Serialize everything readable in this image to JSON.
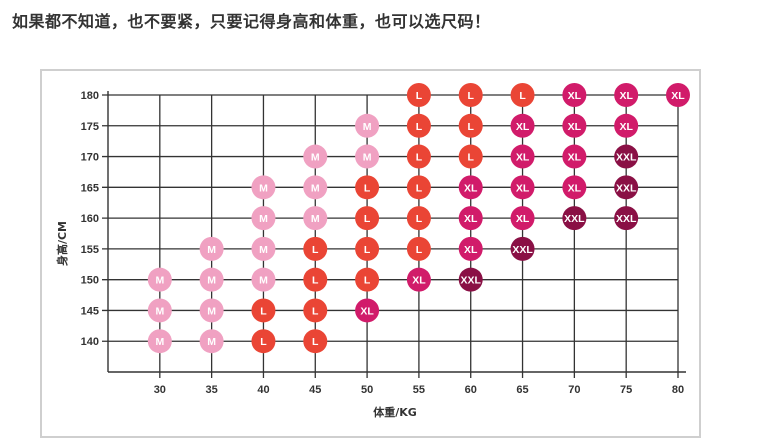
{
  "header": {
    "headline": "如果都不知道，也不要紧，只要记得身高和体重，也可以选尺码！"
  },
  "colors": {
    "M": "#f0a1c2",
    "L": "#ea4535",
    "XL": "#d11b6a",
    "XXL": "#8a1045",
    "grid": "#333333",
    "frame": "#cfcfcf"
  },
  "chart_data": {
    "type": "scatter",
    "xlabel": "体重/KG",
    "ylabel": "身高/CM",
    "x_ticks": [
      30,
      35,
      40,
      45,
      50,
      55,
      60,
      65,
      70,
      75,
      80
    ],
    "y_ticks": [
      140,
      145,
      150,
      155,
      160,
      165,
      170,
      175,
      180
    ],
    "xlim": [
      25,
      80
    ],
    "ylim": [
      135,
      180
    ],
    "points": [
      {
        "x": 30,
        "y": 140,
        "label": "M"
      },
      {
        "x": 30,
        "y": 145,
        "label": "M"
      },
      {
        "x": 30,
        "y": 150,
        "label": "M"
      },
      {
        "x": 35,
        "y": 140,
        "label": "M"
      },
      {
        "x": 35,
        "y": 145,
        "label": "M"
      },
      {
        "x": 35,
        "y": 150,
        "label": "M"
      },
      {
        "x": 35,
        "y": 155,
        "label": "M"
      },
      {
        "x": 40,
        "y": 140,
        "label": "L"
      },
      {
        "x": 40,
        "y": 145,
        "label": "L"
      },
      {
        "x": 40,
        "y": 150,
        "label": "M"
      },
      {
        "x": 40,
        "y": 155,
        "label": "M"
      },
      {
        "x": 40,
        "y": 160,
        "label": "M"
      },
      {
        "x": 40,
        "y": 165,
        "label": "M"
      },
      {
        "x": 45,
        "y": 140,
        "label": "L"
      },
      {
        "x": 45,
        "y": 145,
        "label": "L"
      },
      {
        "x": 45,
        "y": 150,
        "label": "L"
      },
      {
        "x": 45,
        "y": 155,
        "label": "L"
      },
      {
        "x": 45,
        "y": 160,
        "label": "M"
      },
      {
        "x": 45,
        "y": 165,
        "label": "M"
      },
      {
        "x": 45,
        "y": 170,
        "label": "M"
      },
      {
        "x": 50,
        "y": 145,
        "label": "XL"
      },
      {
        "x": 50,
        "y": 150,
        "label": "L"
      },
      {
        "x": 50,
        "y": 155,
        "label": "L"
      },
      {
        "x": 50,
        "y": 160,
        "label": "L"
      },
      {
        "x": 50,
        "y": 165,
        "label": "L"
      },
      {
        "x": 50,
        "y": 170,
        "label": "M"
      },
      {
        "x": 50,
        "y": 175,
        "label": "M"
      },
      {
        "x": 55,
        "y": 150,
        "label": "XL"
      },
      {
        "x": 55,
        "y": 155,
        "label": "L"
      },
      {
        "x": 55,
        "y": 160,
        "label": "L"
      },
      {
        "x": 55,
        "y": 165,
        "label": "L"
      },
      {
        "x": 55,
        "y": 170,
        "label": "L"
      },
      {
        "x": 55,
        "y": 175,
        "label": "L"
      },
      {
        "x": 55,
        "y": 180,
        "label": "L"
      },
      {
        "x": 60,
        "y": 150,
        "label": "XXL"
      },
      {
        "x": 60,
        "y": 155,
        "label": "XL"
      },
      {
        "x": 60,
        "y": 160,
        "label": "XL"
      },
      {
        "x": 60,
        "y": 165,
        "label": "XL"
      },
      {
        "x": 60,
        "y": 170,
        "label": "L"
      },
      {
        "x": 60,
        "y": 175,
        "label": "L"
      },
      {
        "x": 60,
        "y": 180,
        "label": "L"
      },
      {
        "x": 65,
        "y": 155,
        "label": "XXL"
      },
      {
        "x": 65,
        "y": 160,
        "label": "XL"
      },
      {
        "x": 65,
        "y": 165,
        "label": "XL"
      },
      {
        "x": 65,
        "y": 170,
        "label": "XL"
      },
      {
        "x": 65,
        "y": 175,
        "label": "XL"
      },
      {
        "x": 65,
        "y": 180,
        "label": "L"
      },
      {
        "x": 70,
        "y": 160,
        "label": "XXL"
      },
      {
        "x": 70,
        "y": 165,
        "label": "XL"
      },
      {
        "x": 70,
        "y": 170,
        "label": "XL"
      },
      {
        "x": 70,
        "y": 175,
        "label": "XL"
      },
      {
        "x": 70,
        "y": 180,
        "label": "XL"
      },
      {
        "x": 75,
        "y": 160,
        "label": "XXL"
      },
      {
        "x": 75,
        "y": 165,
        "label": "XXL"
      },
      {
        "x": 75,
        "y": 170,
        "label": "XXL"
      },
      {
        "x": 75,
        "y": 175,
        "label": "XL"
      },
      {
        "x": 75,
        "y": 180,
        "label": "XL"
      },
      {
        "x": 80,
        "y": 180,
        "label": "XL"
      }
    ]
  }
}
